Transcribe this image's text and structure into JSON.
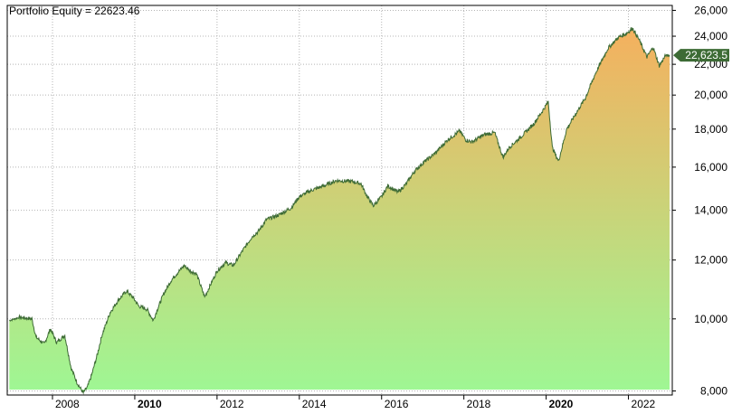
{
  "chart_data": {
    "type": "area",
    "title": "Portfolio Equity = 22623.46",
    "y_scale": "log",
    "ylim": [
      7900,
      26400
    ],
    "xlim": [
      2006.9,
      2023.0
    ],
    "y_ticks": [
      {
        "value": 8000,
        "label": "8,000"
      },
      {
        "value": 10000,
        "label": "10,000"
      },
      {
        "value": 12000,
        "label": "12,000"
      },
      {
        "value": 14000,
        "label": "14,000"
      },
      {
        "value": 16000,
        "label": "16,000"
      },
      {
        "value": 18000,
        "label": "18,000"
      },
      {
        "value": 20000,
        "label": "20,000"
      },
      {
        "value": 22000,
        "label": "22,000"
      },
      {
        "value": 24000,
        "label": "24,000"
      },
      {
        "value": 26000,
        "label": "26,000"
      }
    ],
    "x_ticks": [
      {
        "value": 2008,
        "label": "2008",
        "bold": false
      },
      {
        "value": 2010,
        "label": "2010",
        "bold": true
      },
      {
        "value": 2012,
        "label": "2012",
        "bold": false
      },
      {
        "value": 2014,
        "label": "2014",
        "bold": false
      },
      {
        "value": 2016,
        "label": "2016",
        "bold": false
      },
      {
        "value": 2018,
        "label": "2018",
        "bold": false
      },
      {
        "value": 2020,
        "label": "2020",
        "bold": true
      },
      {
        "value": 2022,
        "label": "2022",
        "bold": false
      }
    ],
    "grid": true,
    "last_value_label": "22,623.5",
    "fill_gradient": {
      "bottom": "#9ef794",
      "top": "#f5b05e"
    },
    "line_color": "#3d6b35",
    "series": [
      {
        "x": [
          2006.95,
          2007.2,
          2007.5,
          2007.6,
          2007.8,
          2007.95,
          2008.1,
          2008.3,
          2008.45,
          2008.6,
          2008.75,
          2008.85,
          2008.95,
          2009.1,
          2009.2,
          2009.4,
          2009.6,
          2009.8,
          2009.95,
          2010.1,
          2010.3,
          2010.45,
          2010.55,
          2010.7,
          2010.9,
          2011.2,
          2011.35,
          2011.5,
          2011.7,
          2011.8,
          2012.0,
          2012.2,
          2012.4,
          2012.6,
          2012.85,
          2013.0,
          2013.2,
          2013.5,
          2013.8,
          2014.0,
          2014.3,
          2014.6,
          2014.9,
          2015.3,
          2015.5,
          2015.65,
          2015.8,
          2016.0,
          2016.15,
          2016.4,
          2016.6,
          2016.8,
          2017.0,
          2017.3,
          2017.6,
          2017.9,
          2018.05,
          2018.2,
          2018.5,
          2018.75,
          2018.95,
          2019.1,
          2019.4,
          2019.7,
          2019.9,
          2020.05,
          2020.15,
          2020.3,
          2020.5,
          2020.8,
          2020.95,
          2021.2,
          2021.5,
          2021.75,
          2021.95,
          2022.1,
          2022.25,
          2022.45,
          2022.6,
          2022.75,
          2022.9,
          2023.0
        ],
        "y": [
          9950,
          10050,
          10000,
          9450,
          9250,
          9700,
          9300,
          9500,
          8600,
          8200,
          7950,
          8100,
          8400,
          9000,
          9500,
          10200,
          10600,
          10900,
          10700,
          10400,
          10300,
          9950,
          10300,
          10800,
          11300,
          11800,
          11600,
          11500,
          10700,
          11000,
          11600,
          11900,
          11800,
          12300,
          12900,
          13100,
          13600,
          13800,
          14100,
          14600,
          14900,
          15100,
          15350,
          15300,
          15200,
          14600,
          14200,
          14600,
          15100,
          14800,
          15200,
          15800,
          16200,
          16700,
          17400,
          17900,
          17400,
          17300,
          17700,
          17800,
          16500,
          17000,
          17600,
          18300,
          19000,
          19600,
          17000,
          16300,
          18000,
          19200,
          19800,
          21400,
          23100,
          23900,
          24200,
          24600,
          23800,
          22500,
          23200,
          21900,
          22600,
          22623.46
        ]
      }
    ]
  }
}
